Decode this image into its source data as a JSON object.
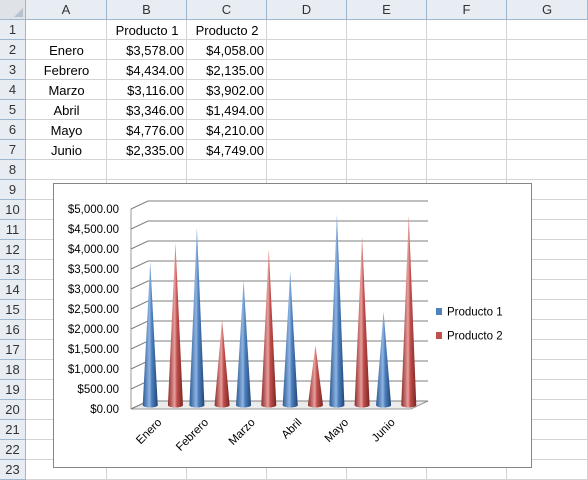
{
  "sheet": {
    "columns": [
      "A",
      "B",
      "C",
      "D",
      "E",
      "F",
      "G"
    ],
    "rows": [
      "1",
      "2",
      "3",
      "4",
      "5",
      "6",
      "7",
      "8",
      "9",
      "10",
      "11",
      "12",
      "13",
      "14",
      "15",
      "16",
      "17",
      "18",
      "19",
      "20",
      "21",
      "22",
      "23"
    ],
    "header_row": [
      "",
      "Producto 1",
      "Producto 2"
    ],
    "data_rows": [
      [
        "Enero",
        "$3,578.00",
        "$4,058.00"
      ],
      [
        "Febrero",
        "$4,434.00",
        "$2,135.00"
      ],
      [
        "Marzo",
        "$3,116.00",
        "$3,902.00"
      ],
      [
        "Abril",
        "$3,346.00",
        "$1,494.00"
      ],
      [
        "Mayo",
        "$4,776.00",
        "$4,210.00"
      ],
      [
        "Junio",
        "$2,335.00",
        "$4,749.00"
      ]
    ]
  },
  "chart_data": {
    "type": "bar",
    "style": "3d-cone",
    "categories": [
      "Enero",
      "Febrero",
      "Marzo",
      "Abril",
      "Mayo",
      "Junio"
    ],
    "series": [
      {
        "name": "Producto 1",
        "values": [
          3578,
          4434,
          3116,
          3346,
          4776,
          2335
        ],
        "color": "#4f81bd"
      },
      {
        "name": "Producto 2",
        "values": [
          4058,
          2135,
          3902,
          1494,
          4210,
          4749
        ],
        "color": "#c0504d"
      }
    ],
    "y_ticks": [
      "$0.00",
      "$500.00",
      "$1,000.00",
      "$1,500.00",
      "$2,000.00",
      "$2,500.00",
      "$3,000.00",
      "$3,500.00",
      "$4,000.00",
      "$4,500.00",
      "$5,000.00"
    ],
    "ylim": [
      0,
      5000
    ],
    "grid": true,
    "legend": "right",
    "title": "",
    "xlabel": "",
    "ylabel": ""
  }
}
